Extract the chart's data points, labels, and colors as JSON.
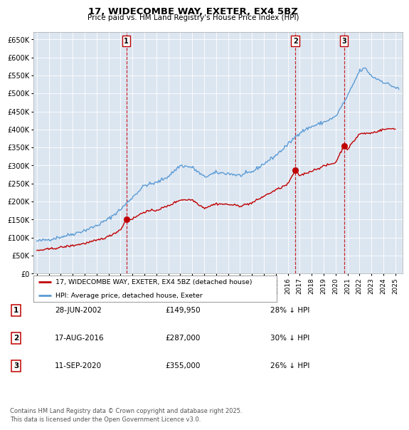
{
  "title": "17, WIDECOMBE WAY, EXETER, EX4 5BZ",
  "subtitle": "Price paid vs. HM Land Registry's House Price Index (HPI)",
  "hpi_color": "#5b9bd5",
  "price_color": "#c00000",
  "vline_color": "#c00000",
  "plot_bg_color": "#dce6f1",
  "ylim": [
    0,
    670000
  ],
  "yticks": [
    0,
    50000,
    100000,
    150000,
    200000,
    250000,
    300000,
    350000,
    400000,
    450000,
    500000,
    550000,
    600000,
    650000
  ],
  "xlim_start": 1994.7,
  "xlim_end": 2025.6,
  "transactions": [
    {
      "label": "1",
      "date_str": "28-JUN-2002",
      "date_x": 2002.49,
      "price": 149950
    },
    {
      "label": "2",
      "date_str": "17-AUG-2016",
      "date_x": 2016.63,
      "price": 287000
    },
    {
      "label": "3",
      "date_str": "11-SEP-2020",
      "date_x": 2020.7,
      "price": 355000
    }
  ],
  "legend_label_price": "17, WIDECOMBE WAY, EXETER, EX4 5BZ (detached house)",
  "legend_label_hpi": "HPI: Average price, detached house, Exeter",
  "footer": "Contains HM Land Registry data © Crown copyright and database right 2025.\nThis data is licensed under the Open Government Licence v3.0.",
  "table_rows": [
    [
      "1",
      "28-JUN-2002",
      "£149,950",
      "28% ↓ HPI"
    ],
    [
      "2",
      "17-AUG-2016",
      "£287,000",
      "30% ↓ HPI"
    ],
    [
      "3",
      "11-SEP-2020",
      "£355,000",
      "26% ↓ HPI"
    ]
  ]
}
